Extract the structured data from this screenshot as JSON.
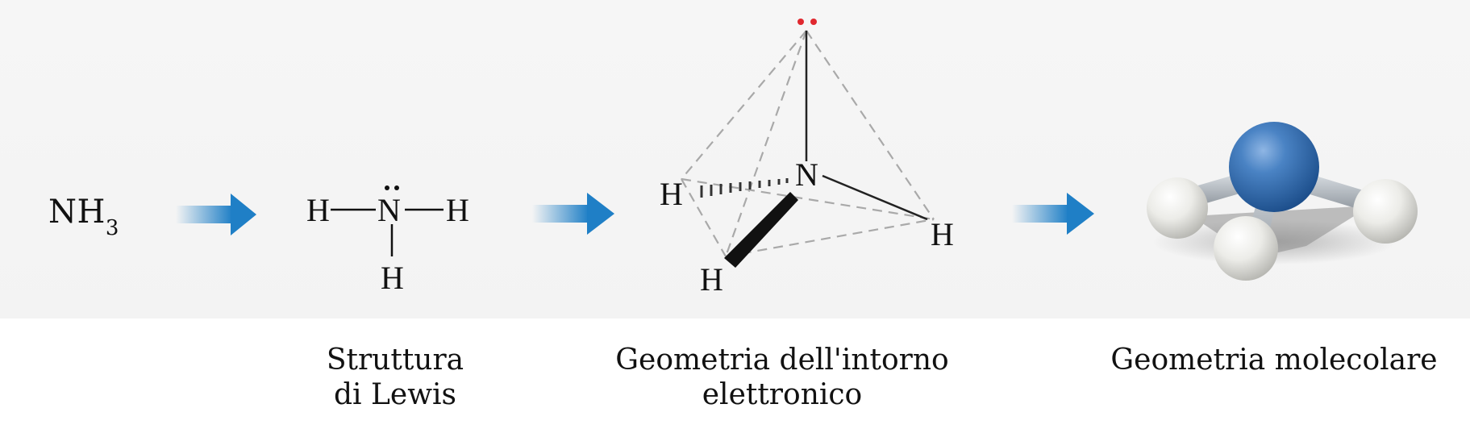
{
  "formula": {
    "symbol": "NH",
    "subscript": "3"
  },
  "lewis": {
    "atoms": {
      "h_left": "H",
      "n_center": "N",
      "h_right": "H",
      "h_bottom": "H"
    }
  },
  "electron_geometry": {
    "atoms": {
      "n": "N",
      "h_left": "H",
      "h_right": "H",
      "h_bottom": "H"
    }
  },
  "captions": {
    "lewis_line1": "Struttura",
    "lewis_line2": "di Lewis",
    "geometry_line1": "Geometria dell'intorno",
    "geometry_line2": "elettronico",
    "molecular": "Geometria molecolare"
  },
  "colors": {
    "arrow": "#1f7fc6",
    "lone_pair": "#e0282f",
    "nitrogen": "#3f78b8",
    "hydrogen": "#ecece8",
    "bond": "#b9bfc6"
  }
}
